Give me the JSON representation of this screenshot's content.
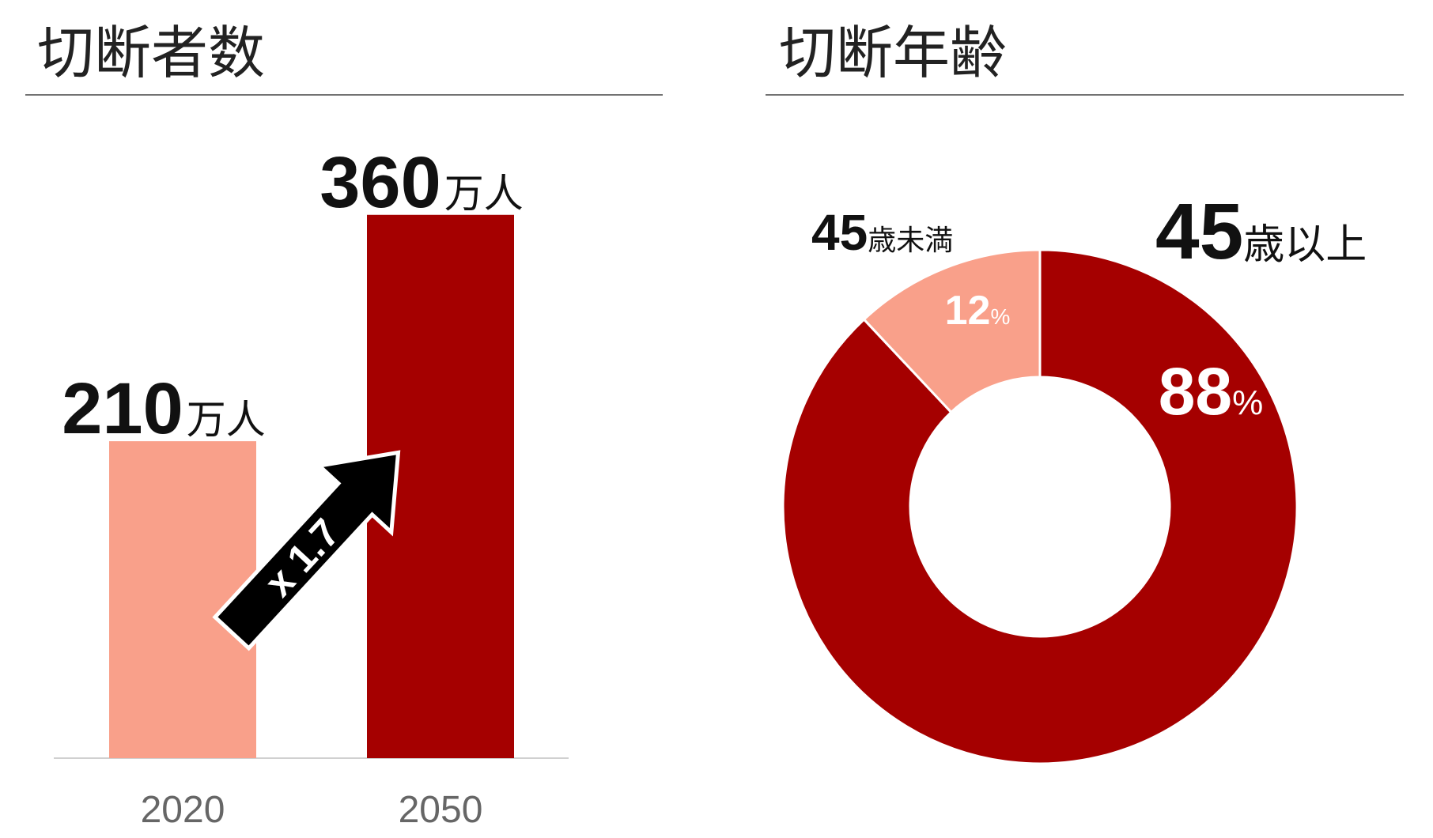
{
  "chart_data": [
    {
      "type": "bar",
      "title": "切断者数",
      "categories": [
        "2020",
        "2050"
      ],
      "values": [
        210,
        360
      ],
      "unit": "万人",
      "colors": [
        "#f9a08a",
        "#a50000"
      ],
      "annotation": "x 1.7"
    },
    {
      "type": "donut",
      "title": "切断年齢",
      "categories": [
        "45歳以上",
        "45歳未満"
      ],
      "values": [
        88,
        12
      ],
      "value_labels": [
        "88%",
        "12%"
      ],
      "colors": [
        "#a50000",
        "#f9a08a"
      ]
    }
  ]
}
